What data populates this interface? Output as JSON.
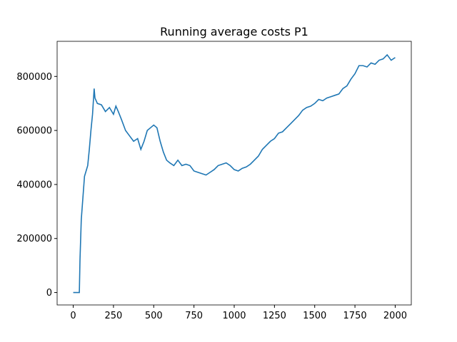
{
  "chart_data": {
    "type": "line",
    "title": "Running average costs P1",
    "x": [
      0,
      35,
      38,
      42,
      50,
      60,
      70,
      80,
      90,
      100,
      110,
      120,
      130,
      135,
      150,
      175,
      200,
      225,
      250,
      265,
      280,
      300,
      325,
      350,
      375,
      400,
      420,
      440,
      460,
      480,
      500,
      520,
      540,
      560,
      580,
      600,
      625,
      650,
      675,
      700,
      725,
      750,
      775,
      800,
      825,
      850,
      875,
      900,
      925,
      950,
      975,
      1000,
      1025,
      1050,
      1075,
      1100,
      1125,
      1150,
      1175,
      1200,
      1225,
      1250,
      1275,
      1300,
      1325,
      1350,
      1375,
      1400,
      1425,
      1450,
      1475,
      1500,
      1525,
      1550,
      1575,
      1600,
      1625,
      1650,
      1675,
      1700,
      1725,
      1750,
      1775,
      1800,
      1825,
      1850,
      1875,
      1900,
      1925,
      1950,
      1975,
      2000
    ],
    "series": [
      {
        "name": "P1",
        "color": "#1f77b4",
        "values": [
          0,
          0,
          0,
          120000,
          270000,
          350000,
          430000,
          450000,
          470000,
          530000,
          600000,
          660000,
          755000,
          720000,
          700000,
          695000,
          670000,
          685000,
          660000,
          690000,
          670000,
          640000,
          600000,
          580000,
          560000,
          570000,
          530000,
          560000,
          600000,
          610000,
          620000,
          610000,
          560000,
          520000,
          490000,
          480000,
          470000,
          490000,
          470000,
          475000,
          470000,
          450000,
          445000,
          440000,
          435000,
          445000,
          455000,
          470000,
          475000,
          480000,
          470000,
          455000,
          450000,
          460000,
          465000,
          475000,
          490000,
          505000,
          530000,
          545000,
          560000,
          570000,
          590000,
          595000,
          610000,
          625000,
          640000,
          655000,
          675000,
          685000,
          690000,
          700000,
          715000,
          710000,
          720000,
          725000,
          730000,
          735000,
          755000,
          765000,
          790000,
          810000,
          840000,
          840000,
          835000,
          850000,
          845000,
          860000,
          865000,
          880000,
          860000,
          870000
        ]
      }
    ],
    "xlim": [
      -100,
      2100
    ],
    "ylim": [
      -46000,
      930000
    ],
    "xticks": [
      0,
      250,
      500,
      750,
      1000,
      1250,
      1500,
      1750,
      2000
    ],
    "yticks": [
      0,
      200000,
      400000,
      600000,
      800000
    ]
  }
}
